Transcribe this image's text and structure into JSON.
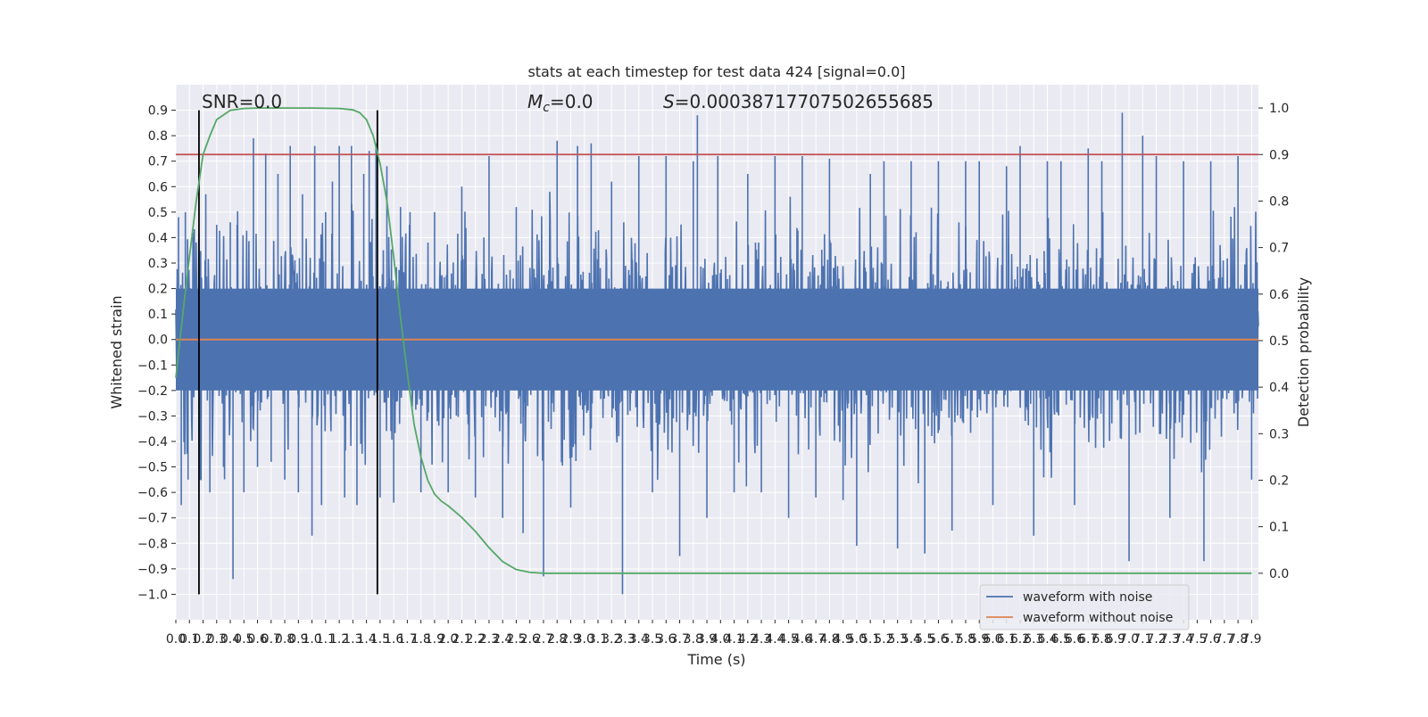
{
  "chart_data": {
    "type": "line",
    "title": "stats at each timestep for test data 424 [signal=0.0]",
    "xlabel": "Time (s)",
    "ylabel_left": "Whitened strain",
    "ylabel_right": "Detection probability",
    "xlim": [
      0.0,
      7.95
    ],
    "ylim_left": [
      -1.1,
      1.0
    ],
    "ylim_right": [
      -0.1,
      1.05
    ],
    "grid": true,
    "x_ticks": [
      0.0,
      0.1,
      0.2,
      0.3,
      0.4,
      0.5,
      0.6,
      0.7,
      0.8,
      0.9,
      1.0,
      1.1,
      1.2,
      1.3,
      1.4,
      1.5,
      1.6,
      1.7,
      1.8,
      1.9,
      2.0,
      2.1,
      2.2,
      2.3,
      2.4,
      2.5,
      2.6,
      2.7,
      2.8,
      2.9,
      3.0,
      3.1,
      3.2,
      3.3,
      3.4,
      3.5,
      3.6,
      3.7,
      3.8,
      3.9,
      4.0,
      4.1,
      4.2,
      4.3,
      4.4,
      4.5,
      4.6,
      4.7,
      4.8,
      4.9,
      5.0,
      5.1,
      5.2,
      5.3,
      5.4,
      5.5,
      5.6,
      5.7,
      5.8,
      5.9,
      6.0,
      6.1,
      6.2,
      6.3,
      6.4,
      6.5,
      6.6,
      6.7,
      6.8,
      6.9,
      7.0,
      7.1,
      7.2,
      7.3,
      7.4,
      7.5,
      7.6,
      7.7,
      7.8,
      7.9
    ],
    "y_ticks_left": [
      0.9,
      0.8,
      0.7,
      0.6,
      0.5,
      0.4,
      0.3,
      0.2,
      0.1,
      0.0,
      -0.1,
      -0.2,
      -0.3,
      -0.4,
      -0.5,
      -0.6,
      -0.7,
      -0.8,
      -0.9,
      -1.0
    ],
    "y_ticks_right": [
      1.0,
      0.9,
      0.8,
      0.7,
      0.6,
      0.5,
      0.4,
      0.3,
      0.2,
      0.1,
      0.0
    ],
    "annotations": [
      {
        "prefix": "SNR",
        "sub": "",
        "text": "=0.0"
      },
      {
        "prefix": "M",
        "sub": "c",
        "text": "=0.0"
      },
      {
        "prefix": "S",
        "sub": "",
        "text": "=0.0003871770750265568​5"
      }
    ],
    "series": [
      {
        "name": "waveform with noise",
        "color": "#4c72b0",
        "axis": "left",
        "envelope_note": "dense noise, approx uniform amplitude",
        "spikes": [
          [
            0.02,
            0.48
          ],
          [
            0.04,
            -0.65
          ],
          [
            0.07,
            0.5
          ],
          [
            0.09,
            -0.55
          ],
          [
            0.13,
            0.42
          ],
          [
            0.18,
            -0.55
          ],
          [
            0.22,
            0.57
          ],
          [
            0.25,
            -0.6
          ],
          [
            0.3,
            0.45
          ],
          [
            0.35,
            -0.5
          ],
          [
            0.4,
            0.46
          ],
          [
            0.42,
            -0.94
          ],
          [
            0.45,
            0.45
          ],
          [
            0.5,
            -0.6
          ],
          [
            0.57,
            0.79
          ],
          [
            0.6,
            -0.5
          ],
          [
            0.66,
            0.73
          ],
          [
            0.7,
            -0.48
          ],
          [
            0.75,
            0.65
          ],
          [
            0.8,
            -0.55
          ],
          [
            0.84,
            0.76
          ],
          [
            0.9,
            -0.6
          ],
          [
            0.93,
            0.57
          ],
          [
            1.0,
            -0.77
          ],
          [
            1.02,
            0.76
          ],
          [
            1.07,
            -0.65
          ],
          [
            1.1,
            0.5
          ],
          [
            1.15,
            0.62
          ],
          [
            1.2,
            0.76
          ],
          [
            1.24,
            -0.62
          ],
          [
            1.29,
            0.76
          ],
          [
            1.33,
            -0.65
          ],
          [
            1.38,
            0.65
          ],
          [
            1.42,
            0.74
          ],
          [
            1.47,
            0.77
          ],
          [
            1.5,
            -0.62
          ],
          [
            1.55,
            0.68
          ],
          [
            1.6,
            -0.64
          ],
          [
            1.65,
            0.52
          ],
          [
            1.72,
            0.5
          ],
          [
            1.8,
            -0.6
          ],
          [
            1.9,
            0.5
          ],
          [
            2.0,
            -0.6
          ],
          [
            2.1,
            0.6
          ],
          [
            2.2,
            -0.62
          ],
          [
            2.3,
            0.72
          ],
          [
            2.4,
            -0.7
          ],
          [
            2.5,
            0.52
          ],
          [
            2.55,
            -0.76
          ],
          [
            2.7,
            -0.93
          ],
          [
            2.8,
            0.78
          ],
          [
            2.9,
            -0.66
          ],
          [
            2.95,
            0.76
          ],
          [
            3.05,
            0.77
          ],
          [
            3.2,
            0.62
          ],
          [
            3.28,
            -1.0
          ],
          [
            3.4,
            0.72
          ],
          [
            3.5,
            -0.6
          ],
          [
            3.6,
            0.72
          ],
          [
            3.7,
            -0.85
          ],
          [
            3.8,
            0.7
          ],
          [
            3.83,
            0.88
          ],
          [
            3.9,
            -0.7
          ],
          [
            3.98,
            0.72
          ],
          [
            4.1,
            -0.6
          ],
          [
            4.2,
            0.65
          ],
          [
            4.3,
            -0.6
          ],
          [
            4.4,
            0.72
          ],
          [
            4.5,
            -0.7
          ],
          [
            4.6,
            0.72
          ],
          [
            4.7,
            -0.62
          ],
          [
            4.8,
            0.71
          ],
          [
            4.9,
            -0.63
          ],
          [
            5.0,
            -0.81
          ],
          [
            5.1,
            0.65
          ],
          [
            5.2,
            0.7
          ],
          [
            5.3,
            -0.82
          ],
          [
            5.4,
            0.7
          ],
          [
            5.5,
            -0.84
          ],
          [
            5.6,
            0.7
          ],
          [
            5.7,
            -0.75
          ],
          [
            5.8,
            0.7
          ],
          [
            5.9,
            0.7
          ],
          [
            6.0,
            -0.65
          ],
          [
            6.1,
            0.68
          ],
          [
            6.2,
            0.76
          ],
          [
            6.3,
            -0.77
          ],
          [
            6.4,
            0.7
          ],
          [
            6.5,
            0.7
          ],
          [
            6.6,
            -0.65
          ],
          [
            6.7,
            0.75
          ],
          [
            6.8,
            0.7
          ],
          [
            6.95,
            0.89
          ],
          [
            7.0,
            -0.87
          ],
          [
            7.1,
            0.8
          ],
          [
            7.2,
            0.72
          ],
          [
            7.3,
            -0.7
          ],
          [
            7.4,
            0.7
          ],
          [
            7.55,
            -0.87
          ],
          [
            7.6,
            0.7
          ],
          [
            7.8,
            0.72
          ],
          [
            7.9,
            -0.55
          ]
        ]
      },
      {
        "name": "waveform without noise",
        "color": "#dd8452",
        "axis": "left",
        "x": [
          0.0,
          7.95
        ],
        "y": [
          0.0,
          0.0
        ]
      },
      {
        "name": "",
        "color": "#55a868",
        "axis": "right",
        "x": [
          0.0,
          0.03,
          0.06,
          0.1,
          0.15,
          0.2,
          0.25,
          0.3,
          0.4,
          0.5,
          0.6,
          0.8,
          1.0,
          1.2,
          1.3,
          1.35,
          1.4,
          1.45,
          1.5,
          1.55,
          1.6,
          1.65,
          1.7,
          1.75,
          1.8,
          1.85,
          1.9,
          1.95,
          2.0,
          2.1,
          2.2,
          2.3,
          2.4,
          2.5,
          2.6,
          2.7,
          2.8,
          2.9,
          3.0,
          4.0,
          5.0,
          6.0,
          7.0,
          7.9
        ],
        "y": [
          0.42,
          0.5,
          0.58,
          0.68,
          0.8,
          0.9,
          0.94,
          0.975,
          0.995,
          0.999,
          1.0,
          1.0,
          1.0,
          0.999,
          0.996,
          0.99,
          0.975,
          0.94,
          0.88,
          0.8,
          0.68,
          0.55,
          0.43,
          0.32,
          0.25,
          0.2,
          0.17,
          0.155,
          0.145,
          0.12,
          0.09,
          0.055,
          0.025,
          0.008,
          0.002,
          0.0,
          0.0,
          0.0,
          0.0,
          0.0,
          0.0,
          0.0,
          0.0,
          0.0
        ]
      },
      {
        "name": "",
        "color": "#c44e52",
        "axis": "right",
        "x": [
          0.0,
          7.95
        ],
        "y": [
          0.9,
          0.9
        ]
      }
    ],
    "vlines": [
      0.17,
      1.48
    ],
    "vline_range": [
      -1.0,
      0.9
    ],
    "legend": {
      "placement": "lower-right",
      "entries": [
        {
          "label": "waveform with noise",
          "color": "#4c72b0"
        },
        {
          "label": "waveform without noise",
          "color": "#dd8452"
        }
      ]
    }
  }
}
